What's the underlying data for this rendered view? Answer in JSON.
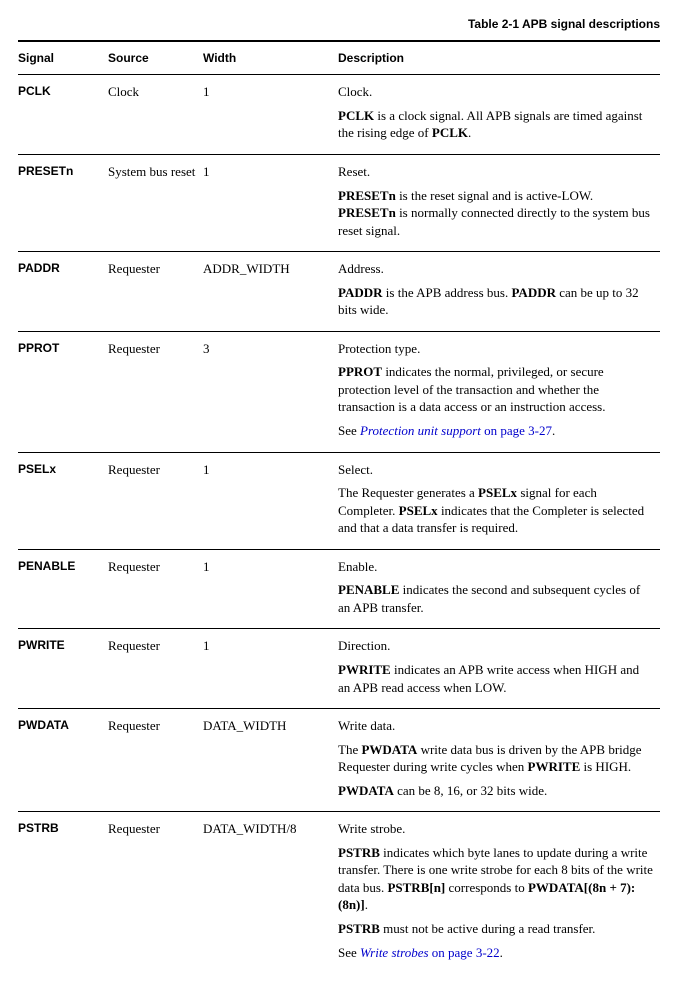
{
  "caption": "Table 2-1 APB signal descriptions",
  "headers": {
    "signal": "Signal",
    "source": "Source",
    "width": "Width",
    "description": "Description"
  },
  "rows": [
    {
      "signal": "PCLK",
      "source": "Clock",
      "width": "1",
      "desc": [
        [
          {
            "t": "Clock."
          }
        ],
        [
          {
            "t": "PCLK",
            "b": true
          },
          {
            "t": " is a clock signal. All APB signals are timed against the rising edge of "
          },
          {
            "t": "PCLK",
            "b": true
          },
          {
            "t": "."
          }
        ]
      ]
    },
    {
      "signal": "PRESETn",
      "source": "System bus reset",
      "width": "1",
      "desc": [
        [
          {
            "t": "Reset."
          }
        ],
        [
          {
            "t": "PRESETn",
            "b": true
          },
          {
            "t": " is the reset signal and is active-LOW. "
          },
          {
            "t": "PRESETn",
            "b": true
          },
          {
            "t": " is normally connected directly to the system bus reset signal."
          }
        ]
      ]
    },
    {
      "signal": "PADDR",
      "source": "Requester",
      "width": "ADDR_WIDTH",
      "desc": [
        [
          {
            "t": "Address."
          }
        ],
        [
          {
            "t": "PADDR",
            "b": true
          },
          {
            "t": " is the APB address bus. "
          },
          {
            "t": "PADDR",
            "b": true
          },
          {
            "t": " can be up to 32 bits wide."
          }
        ]
      ]
    },
    {
      "signal": "PPROT",
      "source": "Requester",
      "width": "3",
      "desc": [
        [
          {
            "t": "Protection type."
          }
        ],
        [
          {
            "t": "PPROT",
            "b": true
          },
          {
            "t": " indicates the normal, privileged, or secure protection level of the transaction and whether the transaction is a data access or an instruction access."
          }
        ],
        [
          {
            "t": "See "
          },
          {
            "t": "Protection unit support",
            "link": true
          },
          {
            "t": " on page 3-27",
            "linkplain": true
          },
          {
            "t": "."
          }
        ]
      ]
    },
    {
      "signal": "PSELx",
      "source": "Requester",
      "width": "1",
      "desc": [
        [
          {
            "t": "Select."
          }
        ],
        [
          {
            "t": "The Requester generates a "
          },
          {
            "t": "PSELx",
            "b": true
          },
          {
            "t": " signal for each Completer. "
          },
          {
            "t": "PSELx",
            "b": true
          },
          {
            "t": " indicates that the Completer is selected and that a data transfer is required."
          }
        ]
      ]
    },
    {
      "signal": "PENABLE",
      "source": "Requester",
      "width": "1",
      "desc": [
        [
          {
            "t": "Enable."
          }
        ],
        [
          {
            "t": "PENABLE",
            "b": true
          },
          {
            "t": " indicates the second and subsequent cycles of an APB transfer."
          }
        ]
      ]
    },
    {
      "signal": "PWRITE",
      "source": "Requester",
      "width": "1",
      "desc": [
        [
          {
            "t": "Direction."
          }
        ],
        [
          {
            "t": "PWRITE",
            "b": true
          },
          {
            "t": " indicates an APB write access when HIGH and an APB read access when LOW."
          }
        ]
      ]
    },
    {
      "signal": "PWDATA",
      "source": "Requester",
      "width": "DATA_WIDTH",
      "desc": [
        [
          {
            "t": "Write data."
          }
        ],
        [
          {
            "t": "The "
          },
          {
            "t": "PWDATA",
            "b": true
          },
          {
            "t": " write data bus is driven by the APB bridge Requester during write cycles when "
          },
          {
            "t": "PWRITE",
            "b": true
          },
          {
            "t": " is HIGH."
          }
        ],
        [
          {
            "t": "PWDATA",
            "b": true
          },
          {
            "t": " can be 8, 16, or 32 bits wide."
          }
        ]
      ]
    },
    {
      "signal": "PSTRB",
      "source": "Requester",
      "width": "DATA_WIDTH/8",
      "desc": [
        [
          {
            "t": "Write strobe."
          }
        ],
        [
          {
            "t": "PSTRB",
            "b": true
          },
          {
            "t": " indicates which byte lanes to update during a write transfer. There is one write strobe for each 8 bits of the write data bus. "
          },
          {
            "t": "PSTRB[n]",
            "b": true
          },
          {
            "t": " corresponds to "
          },
          {
            "t": "PWDATA[(8n + 7):(8n)]",
            "b": true
          },
          {
            "t": "."
          }
        ],
        [
          {
            "t": "PSTRB",
            "b": true
          },
          {
            "t": " must not be active during a read transfer."
          }
        ],
        [
          {
            "t": "See "
          },
          {
            "t": "Write strobes",
            "link": true
          },
          {
            "t": " on page 3-22",
            "linkplain": true
          },
          {
            "t": "."
          }
        ]
      ]
    }
  ]
}
